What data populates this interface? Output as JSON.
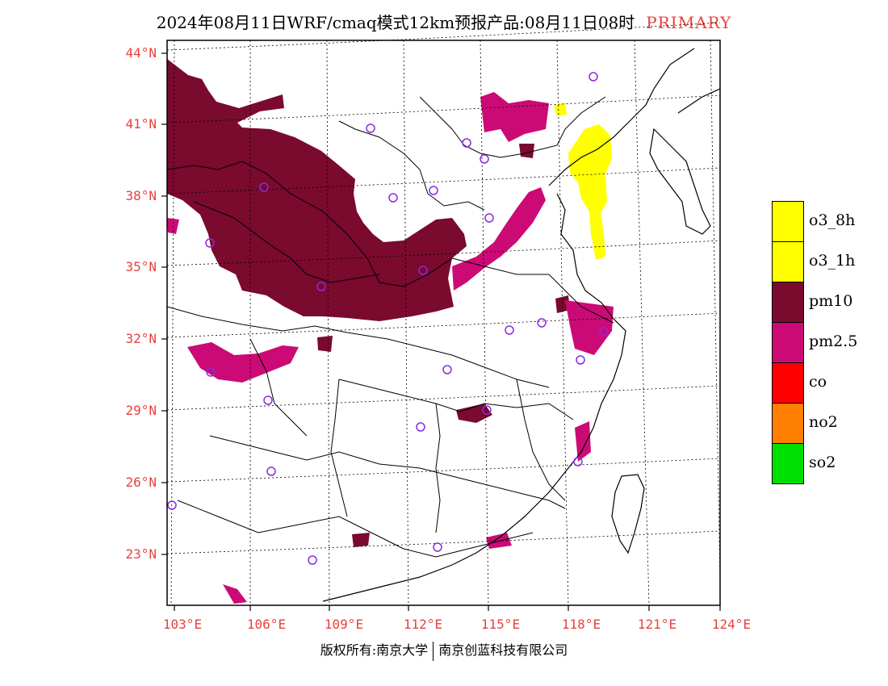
{
  "header": {
    "title": "2024年08月11日WRF/cmaq模式12km预报产品:08月11日08时",
    "tag": "PRIMARY"
  },
  "axes": {
    "lat_labels": [
      "44°N",
      "41°N",
      "38°N",
      "35°N",
      "32°N",
      "29°N",
      "26°N",
      "23°N"
    ],
    "lon_labels": [
      "103°E",
      "106°E",
      "109°E",
      "112°E",
      "115°E",
      "118°E",
      "121°E",
      "124°E"
    ]
  },
  "legend": {
    "items": [
      {
        "label": "o3_8h",
        "color": "#ffff00"
      },
      {
        "label": "o3_1h",
        "color": "#ffff00"
      },
      {
        "label": "pm10",
        "color": "#7a0a2e"
      },
      {
        "label": "pm2.5",
        "color": "#cc0a75"
      },
      {
        "label": "co",
        "color": "#ff0000"
      },
      {
        "label": "no2",
        "color": "#ff7f00"
      },
      {
        "label": "so2",
        "color": "#00e000"
      }
    ]
  },
  "footer": {
    "left": "版权所有:南京大学",
    "right": "南京创蓝科技有限公司"
  },
  "colors": {
    "pm10": "#7a0a2e",
    "pm25": "#cc0a75",
    "o3": "#ffff00",
    "station": "#8a2be2",
    "tick_labels": "#e8413c"
  }
}
